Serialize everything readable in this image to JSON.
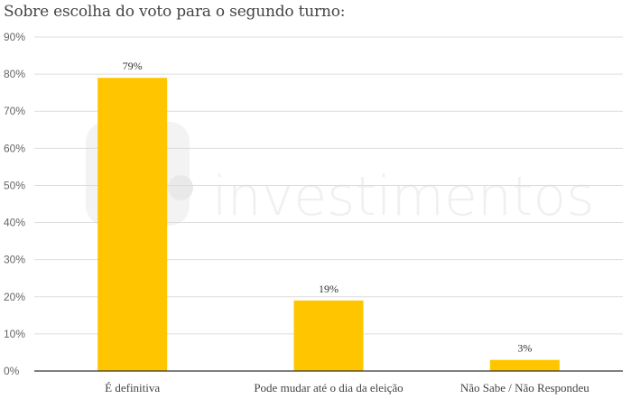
{
  "chart_data": {
    "type": "bar",
    "title": "Sobre escolha do voto para o segundo turno:",
    "categories": [
      "É definitiva",
      "Pode mudar até o dia da eleição",
      "Não Sabe / Não Respondeu"
    ],
    "values": [
      79,
      19,
      3
    ],
    "data_labels": [
      "79%",
      "19%",
      "3%"
    ],
    "ylim": [
      0,
      90
    ],
    "yticks": [
      0,
      10,
      20,
      30,
      40,
      50,
      60,
      70,
      80,
      90
    ],
    "ytick_labels": [
      "0%",
      "10%",
      "20%",
      "30%",
      "40%",
      "50%",
      "60%",
      "70%",
      "80%",
      "90%"
    ],
    "xlabel": "",
    "ylabel": "",
    "grid": true,
    "bar_color": "#FFC600",
    "grid_color": "#dddddd",
    "axis_color": "#333333"
  },
  "watermark": {
    "text": "investimentos",
    "icon": "logo-icon"
  }
}
